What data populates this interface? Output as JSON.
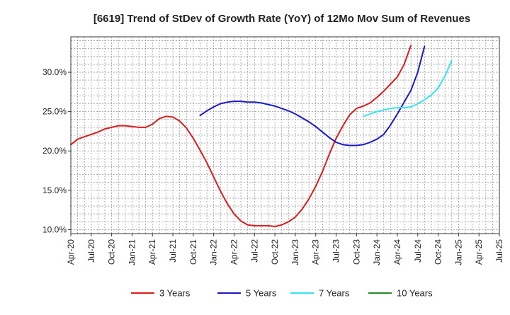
{
  "chart_data": {
    "type": "line",
    "title": "[6619]  Trend of StDev of Growth Rate (YoY) of 12Mo Mov Sum of Revenues",
    "xlabel": "",
    "ylabel": "",
    "ylim": [
      9.5,
      34.5
    ],
    "yticks": [
      10,
      15,
      20,
      25,
      30
    ],
    "ytick_labels": [
      "10.0%",
      "15.0%",
      "20.0%",
      "25.0%",
      "30.0%"
    ],
    "xrange": [
      0,
      63
    ],
    "xticks": [
      0,
      3,
      6,
      9,
      12,
      15,
      18,
      21,
      24,
      27,
      30,
      33,
      36,
      39,
      42,
      45,
      48,
      51,
      54,
      57,
      60,
      63
    ],
    "xtick_labels": [
      "Apr-20",
      "Jul-20",
      "Oct-20",
      "Jan-21",
      "Apr-21",
      "Jul-21",
      "Oct-21",
      "Jan-22",
      "Apr-22",
      "Jul-22",
      "Oct-22",
      "Jan-23",
      "Apr-23",
      "Jul-23",
      "Oct-23",
      "Jan-24",
      "Apr-24",
      "Jul-24",
      "Oct-24",
      "Jan-25",
      "Apr-25",
      "Jul-25"
    ],
    "grid": true,
    "legend_position": "bottom",
    "series": [
      {
        "name": "3 Years",
        "color": "#dd1c1c",
        "start": 0,
        "values": [
          20.8,
          21.5,
          21.8,
          22.1,
          22.4,
          22.8,
          23.0,
          23.2,
          23.2,
          23.1,
          23.0,
          23.0,
          23.4,
          24.1,
          24.4,
          24.3,
          23.8,
          22.9,
          21.6,
          20.1,
          18.5,
          16.7,
          14.9,
          13.3,
          12.0,
          11.1,
          10.6,
          10.5,
          10.5,
          10.5,
          10.4,
          10.6,
          11.0,
          11.6,
          12.6,
          13.9,
          15.5,
          17.4,
          19.6,
          21.6,
          23.2,
          24.6,
          25.4,
          25.7,
          26.1,
          26.8,
          27.6,
          28.5,
          29.4,
          31.0,
          33.4
        ]
      },
      {
        "name": "5 Years",
        "color": "#1a1acc",
        "start": 19,
        "values": [
          24.5,
          25.1,
          25.6,
          26.0,
          26.2,
          26.3,
          26.3,
          26.2,
          26.2,
          26.1,
          25.9,
          25.7,
          25.4,
          25.1,
          24.7,
          24.2,
          23.7,
          23.1,
          22.4,
          21.7,
          21.1,
          20.8,
          20.7,
          20.7,
          20.8,
          21.1,
          21.5,
          22.1,
          23.3,
          24.7,
          26.2,
          27.7,
          30.0,
          33.3
        ]
      },
      {
        "name": "7 Years",
        "color": "#33e6f2",
        "start": 43,
        "values": [
          24.4,
          24.7,
          25.0,
          25.2,
          25.4,
          25.5,
          25.5,
          25.6,
          26.0,
          26.5,
          27.1,
          28.0,
          29.5,
          31.5
        ]
      },
      {
        "name": "10 Years",
        "color": "#228b22",
        "start": 0,
        "values": []
      }
    ]
  }
}
